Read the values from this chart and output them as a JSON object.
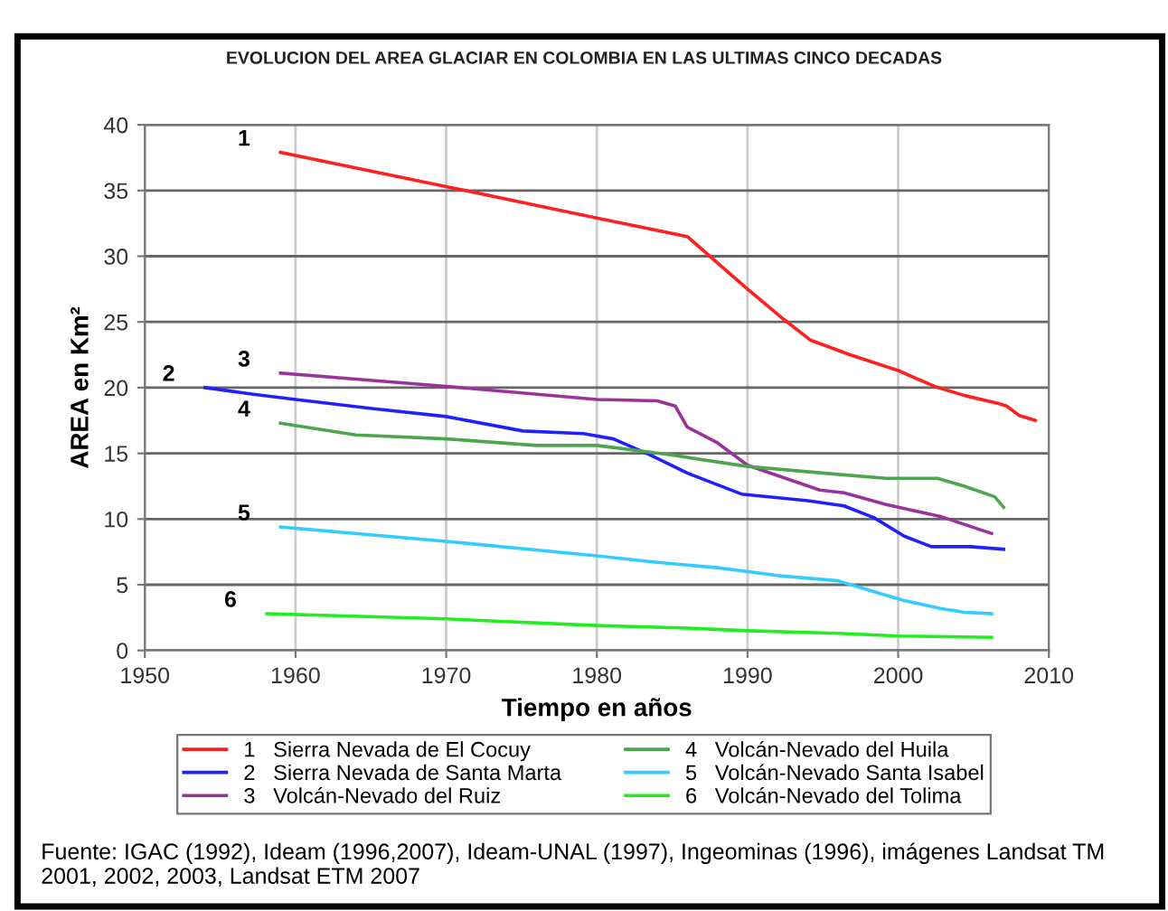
{
  "chart_data": {
    "type": "line",
    "title": "EVOLUCION DEL AREA GLACIAR EN COLOMBIA EN LAS ULTIMAS CINCO DECADAS",
    "xlabel": "Tiempo en años",
    "ylabel": "AREA en Km²",
    "xlim": [
      1950,
      2010
    ],
    "xticks": [
      1950,
      1960,
      1970,
      1980,
      1990,
      2000,
      2010
    ],
    "ylim": [
      0,
      40
    ],
    "yticks": [
      0,
      5,
      10,
      15,
      20,
      25,
      30,
      35,
      40
    ],
    "grid": true,
    "legend": "bottom",
    "marker": "none",
    "line_style": "solid",
    "series": [
      {
        "name": "1   Sierra Nevada de El Cocuy",
        "color": "#ff2020",
        "x": [
          1959,
          1970,
          1980,
          1986,
          1990,
          1992.4,
          1994.2,
          1996.8,
          2000,
          2002.4,
          2004.4,
          2006.6,
          2007.2,
          2008,
          2009.1
        ],
        "values": [
          37.9,
          35.3,
          32.9,
          31.5,
          27.5,
          25.2,
          23.6,
          22.5,
          21.3,
          20.1,
          19.4,
          18.8,
          18.6,
          17.9,
          17.5
        ]
      },
      {
        "name": "2   Sierra Nevada de Santa Marta",
        "color": "#2020ff",
        "x": [
          1954,
          1957.2,
          1960,
          1965.2,
          1970,
          1975.1,
          1979.1,
          1981.1,
          1983.5,
          1986,
          1989.6,
          1994,
          1996.4,
          1998.4,
          2000.4,
          2002.2,
          2004.8,
          2007
        ],
        "values": [
          20.0,
          19.5,
          19.1,
          18.4,
          17.8,
          16.7,
          16.5,
          16.1,
          14.9,
          13.5,
          11.9,
          11.4,
          11.0,
          10.1,
          8.7,
          7.9,
          7.9,
          7.7
        ]
      },
      {
        "name": "3   Volcán-Nevado del Ruiz",
        "color": "#993399",
        "x": [
          1959,
          1970,
          1980,
          1984,
          1985.2,
          1986,
          1988,
          1990,
          1992,
          1994.8,
          1996.4,
          1999.2,
          2002.8,
          2006.2
        ],
        "values": [
          21.1,
          20.1,
          19.1,
          19.0,
          18.6,
          17.0,
          15.8,
          14.1,
          13.3,
          12.2,
          12.0,
          11.1,
          10.2,
          8.9
        ]
      },
      {
        "name": "4   Volcán-Nevado del Huila",
        "color": "#4da64d",
        "x": [
          1959,
          1964,
          1970,
          1976,
          1980,
          1984.8,
          1990,
          1996,
          1999.2,
          2002.6,
          2004.4,
          2006.4,
          2007
        ],
        "values": [
          17.3,
          16.4,
          16.1,
          15.6,
          15.6,
          14.9,
          14.0,
          13.4,
          13.1,
          13.1,
          12.5,
          11.7,
          10.9
        ]
      },
      {
        "name": "5   Volcán-Nevado Santa Isabel",
        "color": "#33ccff",
        "x": [
          1959,
          1970,
          1980,
          1984,
          1988,
          1992,
          1996,
          1998,
          2000.4,
          2002.8,
          2004.4,
          2006.2
        ],
        "values": [
          9.4,
          8.3,
          7.2,
          6.7,
          6.3,
          5.7,
          5.3,
          4.6,
          3.8,
          3.2,
          2.9,
          2.8
        ]
      },
      {
        "name": "6   Volcán-Nevado del Tolima",
        "color": "#20ee20",
        "x": [
          1958.1,
          1970,
          1980,
          1986,
          1990,
          1996,
          2000,
          2006.2
        ],
        "values": [
          2.8,
          2.4,
          1.9,
          1.7,
          1.5,
          1.3,
          1.1,
          1.0
        ]
      }
    ],
    "annotations": [
      "1",
      "2",
      "3",
      "4",
      "5",
      "6",
      "Fuente: IGAC (1992), Ideam (1996,2007), Ideam-UNAL (1997), Ingeominas (1996), imágenes Landsat TM 2001, 2002, 2003, Landsat ETM 2007"
    ]
  }
}
